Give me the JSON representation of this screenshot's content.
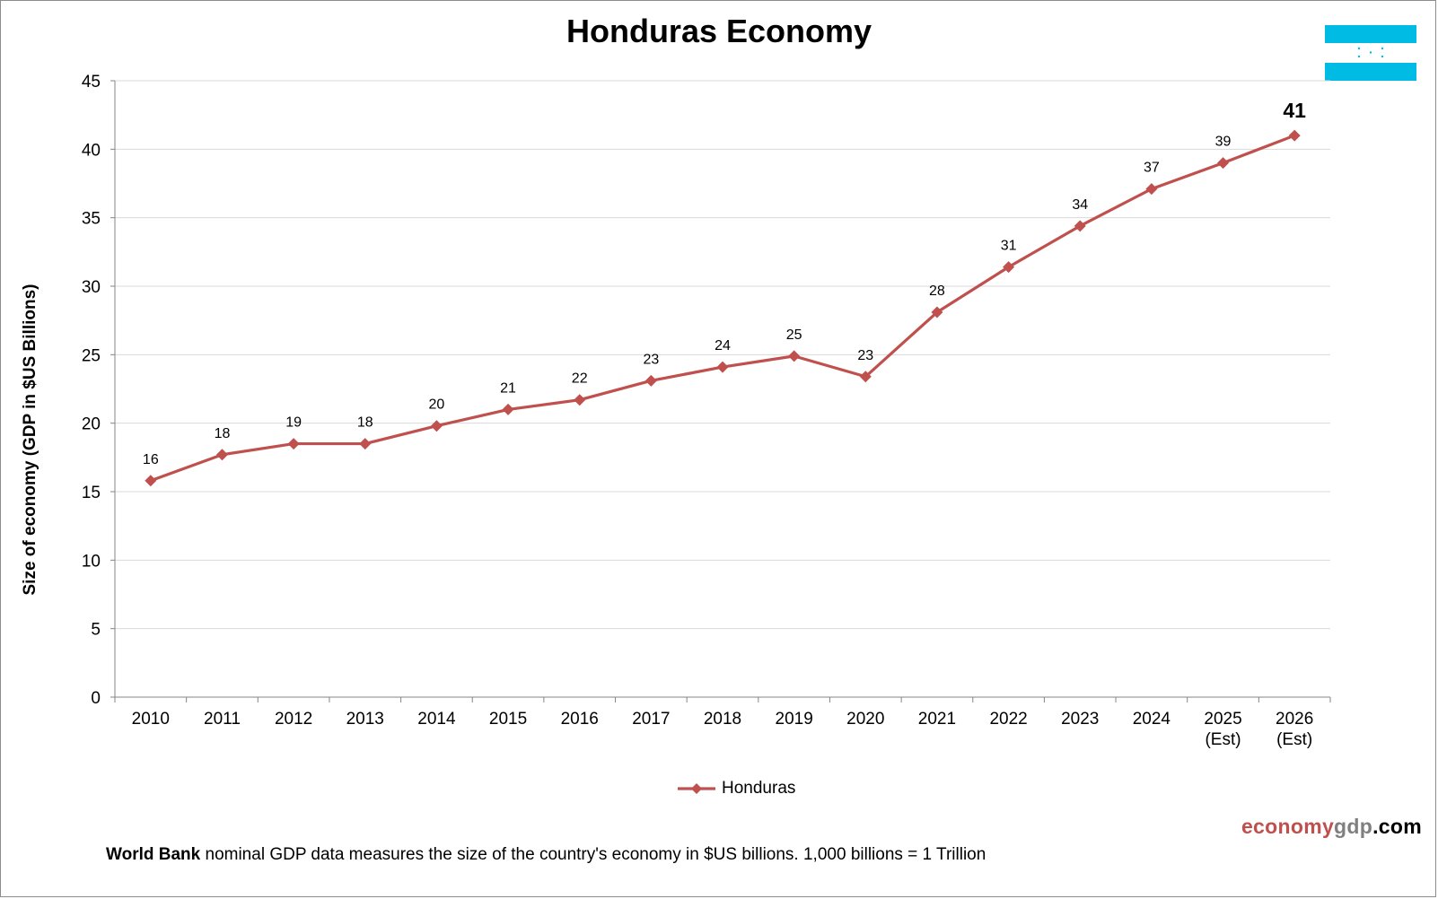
{
  "chart_data": {
    "type": "line",
    "title": "Honduras Economy",
    "ylabel": "Size of economy (GDP in $US Billions)",
    "xlabel": "",
    "ylim": [
      0,
      45
    ],
    "yticks": [
      0,
      5,
      10,
      15,
      20,
      25,
      30,
      35,
      40,
      45
    ],
    "grid": true,
    "legend_position": "bottom",
    "categories": [
      "2010",
      "2011",
      "2012",
      "2013",
      "2014",
      "2015",
      "2016",
      "2017",
      "2018",
      "2019",
      "2020",
      "2021",
      "2022",
      "2023",
      "2024",
      "2025\n(Est)",
      "2026\n(Est)"
    ],
    "series": [
      {
        "name": "Honduras",
        "color": "#c0504d",
        "marker": "diamond",
        "values": [
          15.8,
          17.7,
          18.5,
          18.5,
          19.8,
          21.0,
          21.7,
          23.1,
          24.1,
          24.9,
          23.4,
          28.1,
          31.4,
          34.4,
          37.1,
          39.0,
          41.0
        ],
        "data_labels": [
          "16",
          "18",
          "19",
          "18",
          "20",
          "21",
          "22",
          "23",
          "24",
          "25",
          "23",
          "28",
          "31",
          "34",
          "37",
          "39",
          "41"
        ]
      }
    ]
  },
  "brand": {
    "part1": "economy",
    "part2": "gdp",
    "part3": ".com"
  },
  "footnote": {
    "bold": "World Bank",
    "text": " nominal  GDP data  measures  the size of the country's economy in $US  billions.  1,000 billions  = 1 Trillion"
  },
  "flag": {
    "colors": {
      "stripe": "#00bce4",
      "center": "#ffffff",
      "stars": "#00bce4"
    }
  }
}
